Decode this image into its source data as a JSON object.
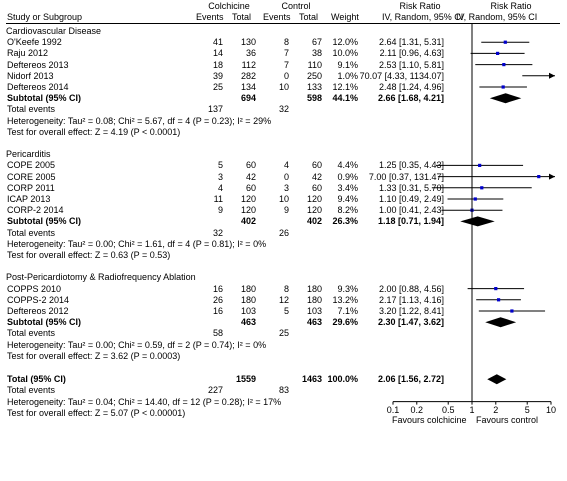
{
  "header": {
    "col_study": "Study or Subgroup",
    "exp_group": "Colchicine",
    "ctrl_group": "Control",
    "col_events": "Events",
    "col_total": "Total",
    "col_weight": "Weight",
    "rr_title": "Risk Ratio",
    "rr_method": "IV, Random, 95% CI"
  },
  "chart_data": {
    "type": "forest",
    "x_scale": "log",
    "xlim": [
      0.1,
      10
    ],
    "ticks": [
      "0.1",
      "0.2",
      "0.5",
      "1",
      "2",
      "5",
      "10"
    ],
    "tick_values": [
      0.1,
      0.2,
      0.5,
      1,
      2,
      5,
      10
    ],
    "xlabel_left": "Favours colchicine",
    "xlabel_right": "Favours control",
    "groups": [
      {
        "title": "Cardiovascular Disease",
        "studies": [
          {
            "name": "O'Keefe 1992",
            "e1": "41",
            "n1": "130",
            "e2": "8",
            "n2": "67",
            "weight": "12.0%",
            "ci": "2.64 [1.31, 5.31]",
            "rr": 2.64,
            "lo": 1.31,
            "hi": 5.31
          },
          {
            "name": "Raju 2012",
            "e1": "14",
            "n1": "36",
            "e2": "7",
            "n2": "38",
            "weight": "10.0%",
            "ci": "2.11 [0.96, 4.63]",
            "rr": 2.11,
            "lo": 0.96,
            "hi": 4.63
          },
          {
            "name": "Deftereos 2013",
            "e1": "18",
            "n1": "112",
            "e2": "7",
            "n2": "110",
            "weight": "9.1%",
            "ci": "2.53 [1.10, 5.81]",
            "rr": 2.53,
            "lo": 1.1,
            "hi": 5.81
          },
          {
            "name": "Nidorf 2013",
            "e1": "39",
            "n1": "282",
            "e2": "0",
            "n2": "250",
            "weight": "1.0%",
            "ci": "70.07 [4.33, 1134.07]",
            "rr": 70.07,
            "lo": 4.33,
            "hi": 1134.07
          },
          {
            "name": "Deftereos 2014",
            "e1": "25",
            "n1": "134",
            "e2": "10",
            "n2": "133",
            "weight": "12.1%",
            "ci": "2.48 [1.24, 4.96]",
            "rr": 2.48,
            "lo": 1.24,
            "hi": 4.96
          }
        ],
        "subtotal": {
          "label": "Subtotal (95% CI)",
          "n1": "694",
          "n2": "598",
          "weight": "44.1%",
          "ci": "2.66 [1.68, 4.21]",
          "rr": 2.66,
          "lo": 1.68,
          "hi": 4.21
        },
        "total_events": {
          "label": "Total events",
          "e1": "137",
          "e2": "32"
        },
        "heterogeneity": "Heterogeneity: Tau² = 0.08; Chi² = 5.67, df = 4 (P = 0.23); I² = 29%",
        "overall": "Test for overall effect: Z = 4.19 (P < 0.0001)"
      },
      {
        "title": "Pericarditis",
        "studies": [
          {
            "name": "COPE 2005",
            "e1": "5",
            "n1": "60",
            "e2": "4",
            "n2": "60",
            "weight": "4.4%",
            "ci": "1.25 [0.35, 4.43]",
            "rr": 1.25,
            "lo": 0.35,
            "hi": 4.43
          },
          {
            "name": "CORE 2005",
            "e1": "3",
            "n1": "42",
            "e2": "0",
            "n2": "42",
            "weight": "0.9%",
            "ci": "7.00 [0.37, 131.47]",
            "rr": 7.0,
            "lo": 0.37,
            "hi": 131.47
          },
          {
            "name": "CORP 2011",
            "e1": "4",
            "n1": "60",
            "e2": "3",
            "n2": "60",
            "weight": "3.4%",
            "ci": "1.33 [0.31, 5.70]",
            "rr": 1.33,
            "lo": 0.31,
            "hi": 5.7
          },
          {
            "name": "ICAP 2013",
            "e1": "11",
            "n1": "120",
            "e2": "10",
            "n2": "120",
            "weight": "9.4%",
            "ci": "1.10 [0.49, 2.49]",
            "rr": 1.1,
            "lo": 0.49,
            "hi": 2.49
          },
          {
            "name": "CORP-2 2014",
            "e1": "9",
            "n1": "120",
            "e2": "9",
            "n2": "120",
            "weight": "8.2%",
            "ci": "1.00 [0.41, 2.43]",
            "rr": 1.0,
            "lo": 0.41,
            "hi": 2.43
          }
        ],
        "subtotal": {
          "label": "Subtotal (95% CI)",
          "n1": "402",
          "n2": "402",
          "weight": "26.3%",
          "ci": "1.18 [0.71, 1.94]",
          "rr": 1.18,
          "lo": 0.71,
          "hi": 1.94
        },
        "total_events": {
          "label": "Total events",
          "e1": "32",
          "e2": "26"
        },
        "heterogeneity": "Heterogeneity: Tau² = 0.00; Chi² = 1.61, df = 4 (P = 0.81); I² = 0%",
        "overall": "Test for overall effect: Z = 0.63 (P = 0.53)"
      },
      {
        "title": "Post-Pericardiotomy & Radiofrequency Ablation",
        "studies": [
          {
            "name": "COPPS 2010",
            "e1": "16",
            "n1": "180",
            "e2": "8",
            "n2": "180",
            "weight": "9.3%",
            "ci": "2.00 [0.88, 4.56]",
            "rr": 2.0,
            "lo": 0.88,
            "hi": 4.56
          },
          {
            "name": "COPPS-2 2014",
            "e1": "26",
            "n1": "180",
            "e2": "12",
            "n2": "180",
            "weight": "13.2%",
            "ci": "2.17 [1.13, 4.16]",
            "rr": 2.17,
            "lo": 1.13,
            "hi": 4.16
          },
          {
            "name": "Deftereos 2012",
            "e1": "16",
            "n1": "103",
            "e2": "5",
            "n2": "103",
            "weight": "7.1%",
            "ci": "3.20 [1.22, 8.41]",
            "rr": 3.2,
            "lo": 1.22,
            "hi": 8.41
          }
        ],
        "subtotal": {
          "label": "Subtotal (95% CI)",
          "n1": "463",
          "n2": "463",
          "weight": "29.6%",
          "ci": "2.30 [1.47, 3.62]",
          "rr": 2.3,
          "lo": 1.47,
          "hi": 3.62
        },
        "total_events": {
          "label": "Total events",
          "e1": "58",
          "e2": "25"
        },
        "heterogeneity": "Heterogeneity: Tau² = 0.00; Chi² = 0.59, df = 2 (P = 0.74); I² = 0%",
        "overall": "Test for overall effect: Z = 3.62 (P = 0.0003)"
      }
    ],
    "total": {
      "label": "Total (95% CI)",
      "n1": "1559",
      "n2": "1463",
      "weight": "100.0%",
      "ci": "2.06 [1.56, 2.72]",
      "rr": 2.06,
      "lo": 1.56,
      "hi": 2.72
    },
    "total_events": {
      "label": "Total events",
      "e1": "227",
      "e2": "83"
    },
    "heterogeneity": "Heterogeneity: Tau² = 0.04; Chi² = 14.40, df = 12 (P = 0.28); I² = 17%",
    "overall": "Test for overall effect: Z = 5.07 (P < 0.00001)",
    "colors": {
      "study_square": "#0000cc",
      "text": "#000000",
      "lines": "#000000"
    }
  }
}
